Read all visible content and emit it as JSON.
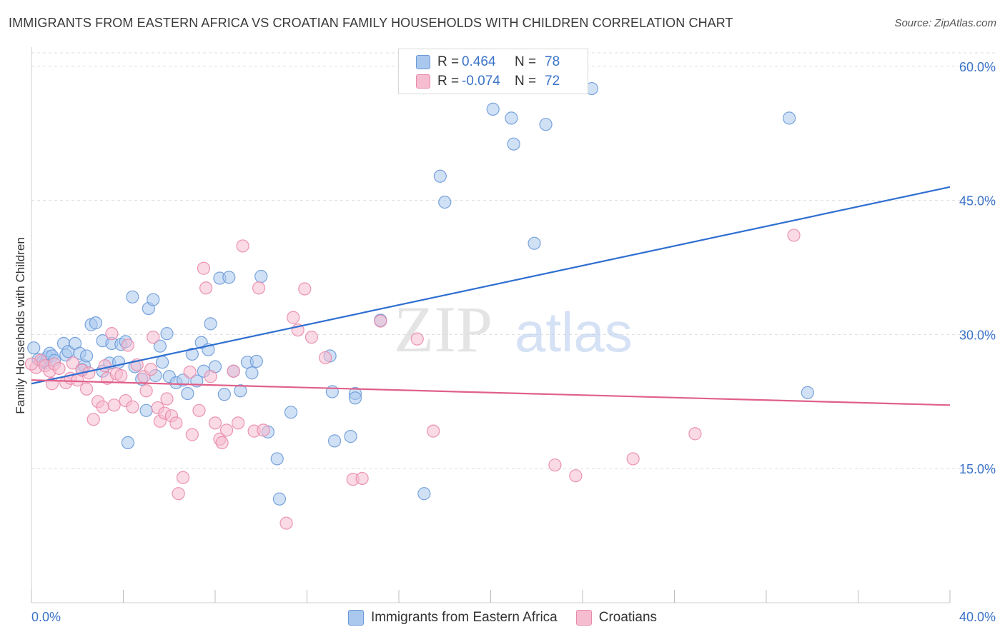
{
  "title": "IMMIGRANTS FROM EASTERN AFRICA VS CROATIAN FAMILY HOUSEHOLDS WITH CHILDREN CORRELATION CHART",
  "source": "Source: ZipAtlas.com",
  "watermark": {
    "zip": "ZIP",
    "atlas": "atlas"
  },
  "colors": {
    "blue_fill": "#aac8ee",
    "blue_stroke": "#6c9ad8",
    "blue_line": "#2f6fd0",
    "pink_fill": "#f6bcd0",
    "pink_stroke": "#e98aab",
    "pink_line": "#e0608a",
    "tick_label": "#3b73c8",
    "grid": "#dddddd"
  },
  "legend_top": [
    {
      "r_label": "R =",
      "r_value": "0.464",
      "n_label": "N =",
      "n_value": "78"
    },
    {
      "r_label": "R =",
      "r_value": "-0.074",
      "n_label": "N =",
      "n_value": "72"
    }
  ],
  "chart_data": {
    "type": "scatter",
    "title": "IMMIGRANTS FROM EASTERN AFRICA VS CROATIAN FAMILY HOUSEHOLDS WITH CHILDREN CORRELATION CHART",
    "xlabel": "",
    "ylabel": "Family Households with Children",
    "xlim": [
      0,
      40
    ],
    "ylim": [
      0,
      61.5
    ],
    "x_tick_labels": [
      {
        "value": 0,
        "label": "0.0%"
      },
      {
        "value": 40,
        "label": "40.0%"
      }
    ],
    "y_ticks": [
      {
        "value": 15,
        "label": "15.0%"
      },
      {
        "value": 30,
        "label": "30.0%"
      },
      {
        "value": 45,
        "label": "45.0%"
      },
      {
        "value": 60,
        "label": "60.0%"
      }
    ],
    "x_minor_ticks": [
      0,
      4,
      8,
      12,
      16,
      20,
      24,
      28,
      32,
      36,
      40
    ],
    "grid": true,
    "series": [
      {
        "name": "Immigrants from Eastern Africa",
        "color": "#aac8ee",
        "trend": {
          "x": [
            0,
            40
          ],
          "y": [
            24.5,
            46.5
          ]
        },
        "points": [
          [
            0.1,
            28.5
          ],
          [
            0.3,
            27.2
          ],
          [
            0.5,
            27.0
          ],
          [
            0.6,
            26.8
          ],
          [
            0.7,
            27.5
          ],
          [
            0.8,
            27.9
          ],
          [
            0.9,
            27.6
          ],
          [
            1.0,
            27.1
          ],
          [
            1.4,
            29.0
          ],
          [
            1.5,
            27.7
          ],
          [
            1.6,
            28.1
          ],
          [
            1.9,
            29.0
          ],
          [
            2.1,
            27.9
          ],
          [
            2.2,
            26.1
          ],
          [
            2.3,
            26.5
          ],
          [
            2.4,
            27.6
          ],
          [
            2.6,
            31.1
          ],
          [
            2.8,
            31.3
          ],
          [
            3.1,
            25.9
          ],
          [
            3.1,
            29.3
          ],
          [
            3.4,
            26.8
          ],
          [
            3.5,
            29.0
          ],
          [
            3.8,
            26.9
          ],
          [
            3.9,
            28.9
          ],
          [
            4.1,
            29.2
          ],
          [
            4.2,
            17.9
          ],
          [
            4.4,
            34.2
          ],
          [
            4.5,
            26.4
          ],
          [
            4.8,
            25.0
          ],
          [
            5.0,
            21.5
          ],
          [
            5.1,
            32.9
          ],
          [
            5.3,
            33.9
          ],
          [
            5.4,
            25.4
          ],
          [
            5.6,
            28.7
          ],
          [
            5.7,
            26.9
          ],
          [
            5.9,
            30.1
          ],
          [
            6.0,
            25.3
          ],
          [
            6.3,
            24.6
          ],
          [
            6.6,
            24.9
          ],
          [
            6.8,
            23.4
          ],
          [
            7.0,
            27.8
          ],
          [
            7.2,
            24.8
          ],
          [
            7.4,
            29.1
          ],
          [
            7.5,
            25.9
          ],
          [
            7.7,
            28.3
          ],
          [
            7.8,
            31.2
          ],
          [
            8.0,
            26.4
          ],
          [
            8.2,
            36.3
          ],
          [
            8.4,
            23.3
          ],
          [
            8.6,
            36.4
          ],
          [
            8.8,
            25.9
          ],
          [
            9.1,
            23.7
          ],
          [
            9.4,
            26.9
          ],
          [
            9.6,
            25.7
          ],
          [
            9.8,
            27.0
          ],
          [
            10.0,
            36.5
          ],
          [
            10.3,
            19.1
          ],
          [
            10.7,
            16.1
          ],
          [
            10.8,
            11.6
          ],
          [
            11.3,
            21.3
          ],
          [
            13.0,
            27.6
          ],
          [
            13.1,
            23.6
          ],
          [
            13.2,
            18.1
          ],
          [
            13.9,
            18.6
          ],
          [
            14.1,
            23.4
          ],
          [
            14.1,
            22.9
          ],
          [
            15.2,
            31.6
          ],
          [
            17.1,
            12.2
          ],
          [
            17.8,
            47.7
          ],
          [
            18.0,
            44.8
          ],
          [
            20.1,
            55.2
          ],
          [
            20.9,
            54.2
          ],
          [
            21.0,
            51.3
          ],
          [
            21.9,
            40.2
          ],
          [
            22.4,
            53.5
          ],
          [
            24.4,
            57.5
          ],
          [
            33.0,
            54.2
          ],
          [
            33.8,
            23.5
          ]
        ]
      },
      {
        "name": "Croatians",
        "color": "#f6bcd0",
        "trend": {
          "x": [
            0,
            40
          ],
          "y": [
            24.9,
            22.1
          ]
        },
        "points": [
          [
            0.2,
            26.3
          ],
          [
            0.4,
            27.1
          ],
          [
            0.6,
            26.5
          ],
          [
            0.8,
            25.9
          ],
          [
            1.0,
            26.7
          ],
          [
            1.2,
            26.2
          ],
          [
            1.5,
            24.6
          ],
          [
            1.7,
            25.1
          ],
          [
            1.8,
            26.8
          ],
          [
            2.0,
            24.9
          ],
          [
            2.2,
            26.0
          ],
          [
            2.4,
            23.9
          ],
          [
            2.5,
            25.7
          ],
          [
            2.7,
            20.5
          ],
          [
            2.9,
            22.5
          ],
          [
            3.1,
            21.9
          ],
          [
            3.2,
            26.5
          ],
          [
            3.3,
            25.1
          ],
          [
            3.5,
            30.1
          ],
          [
            3.6,
            22.1
          ],
          [
            3.7,
            25.6
          ],
          [
            3.9,
            25.4
          ],
          [
            4.1,
            22.6
          ],
          [
            4.2,
            28.8
          ],
          [
            4.4,
            21.9
          ],
          [
            4.6,
            26.6
          ],
          [
            4.9,
            25.3
          ],
          [
            5.0,
            23.7
          ],
          [
            5.2,
            26.1
          ],
          [
            5.3,
            29.7
          ],
          [
            5.5,
            21.8
          ],
          [
            5.6,
            20.3
          ],
          [
            5.8,
            21.2
          ],
          [
            5.9,
            22.8
          ],
          [
            6.1,
            20.9
          ],
          [
            6.3,
            20.1
          ],
          [
            6.6,
            14.0
          ],
          [
            6.4,
            12.2
          ],
          [
            6.9,
            25.8
          ],
          [
            7.0,
            18.8
          ],
          [
            7.3,
            21.5
          ],
          [
            7.5,
            37.4
          ],
          [
            7.6,
            35.2
          ],
          [
            7.8,
            25.3
          ],
          [
            8.0,
            20.1
          ],
          [
            8.2,
            18.3
          ],
          [
            8.3,
            17.9
          ],
          [
            8.5,
            19.3
          ],
          [
            8.8,
            25.9
          ],
          [
            9.0,
            20.1
          ],
          [
            9.2,
            39.9
          ],
          [
            9.7,
            19.2
          ],
          [
            9.9,
            35.2
          ],
          [
            10.1,
            19.3
          ],
          [
            11.1,
            8.9
          ],
          [
            11.4,
            31.9
          ],
          [
            11.6,
            30.5
          ],
          [
            11.9,
            35.1
          ],
          [
            12.2,
            29.7
          ],
          [
            12.8,
            27.4
          ],
          [
            14.0,
            13.8
          ],
          [
            14.4,
            13.9
          ],
          [
            15.2,
            31.5
          ],
          [
            16.8,
            29.5
          ],
          [
            17.5,
            19.2
          ],
          [
            22.8,
            15.4
          ],
          [
            23.7,
            14.2
          ],
          [
            26.2,
            16.1
          ],
          [
            28.9,
            18.9
          ],
          [
            33.2,
            41.1
          ],
          [
            0.0,
            26.7
          ],
          [
            0.9,
            24.5
          ]
        ]
      }
    ]
  },
  "legend_bottom": [
    "Immigrants from Eastern Africa",
    "Croatians"
  ]
}
